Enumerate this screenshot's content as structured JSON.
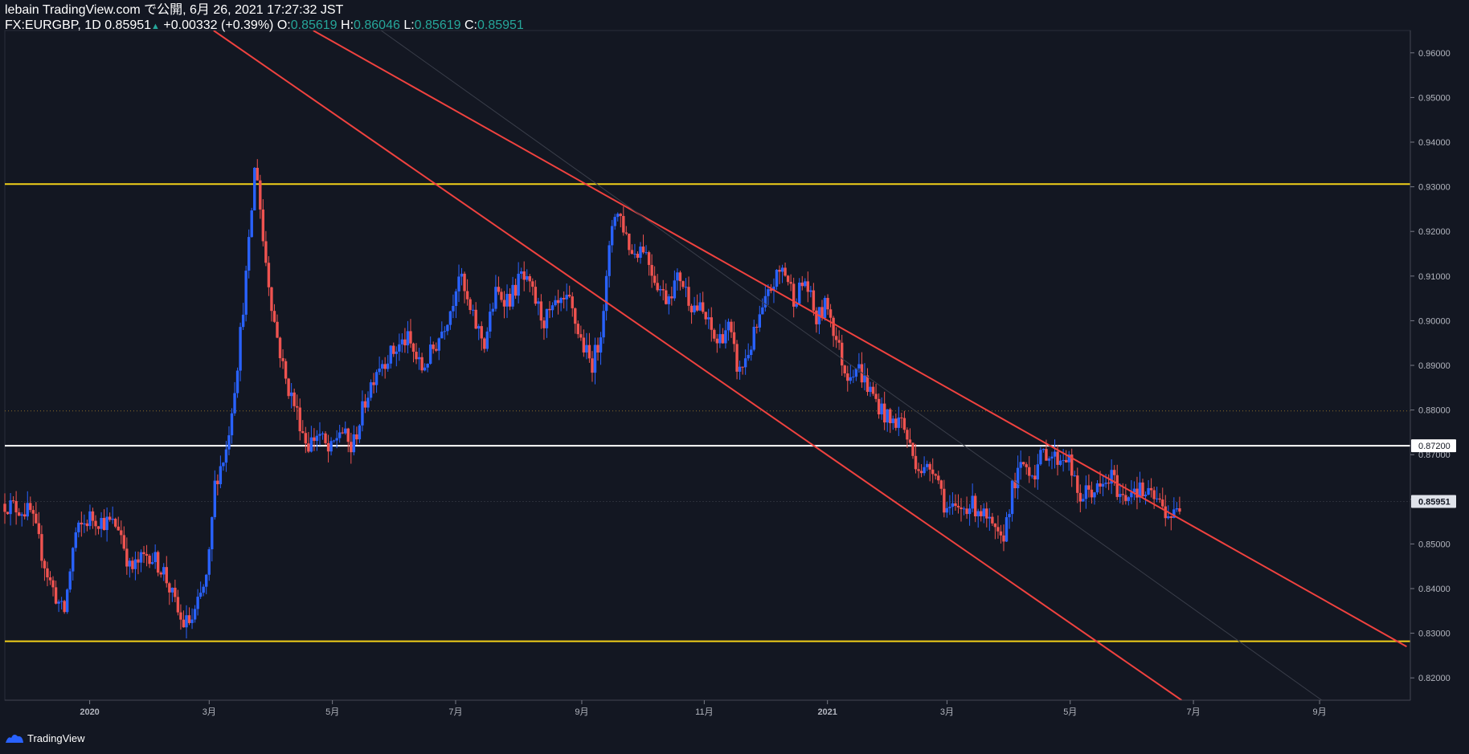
{
  "header": {
    "line1": "lebain TradingView.com で公開, 6月 26, 2021 17:27:32 JST",
    "symbol": "FX:EURGBP, 1D",
    "last": "0.85951",
    "up_arrow": "▲",
    "change": "+0.00332 (+0.39%)",
    "o_label": "O:",
    "o": "0.85619",
    "h_label": "H:",
    "h": "0.86046",
    "l_label": "L:",
    "l": "0.85619",
    "c_label": "C:",
    "c": "0.85951"
  },
  "footer": {
    "brand": "TradingView"
  },
  "colors": {
    "bg": "#131722",
    "up": "#2962ff",
    "down": "#ef5350",
    "trend": "#f0423f",
    "support": "#f2d019",
    "level": "#ffffff",
    "grid": "#1e2230"
  },
  "chart_data": {
    "type": "candlestick",
    "symbol": "FX:EURGBP",
    "interval": "1D",
    "ylim": [
      0.815,
      0.965
    ],
    "y_ticks": [
      "0.82000",
      "0.83000",
      "0.84000",
      "0.85000",
      "0.86000",
      "0.87000",
      "0.88000",
      "0.89000",
      "0.90000",
      "0.91000",
      "0.92000",
      "0.93000",
      "0.94000",
      "0.95000",
      "0.96000"
    ],
    "x_ticks": [
      {
        "label": "2020",
        "t": 2020.0
      },
      {
        "label": "3月",
        "t": 2020.162
      },
      {
        "label": "5月",
        "t": 2020.329
      },
      {
        "label": "7月",
        "t": 2020.496
      },
      {
        "label": "9月",
        "t": 2020.667
      },
      {
        "label": "11月",
        "t": 2020.833
      },
      {
        "label": "2021",
        "t": 2021.0
      },
      {
        "label": "3月",
        "t": 2021.162
      },
      {
        "label": "5月",
        "t": 2021.329
      },
      {
        "label": "7月",
        "t": 2021.496
      },
      {
        "label": "9月",
        "t": 2021.667
      }
    ],
    "xlim": [
      2019.885,
      2021.79
    ],
    "horizontal_levels": [
      {
        "name": "resistance",
        "value": 0.9306,
        "color": "#f2d019"
      },
      {
        "name": "support",
        "value": 0.8282,
        "color": "#f2d019"
      },
      {
        "name": "key-level",
        "value": 0.872,
        "color": "#ffffff",
        "label": "0.87200"
      }
    ],
    "dotted_level": 0.8798,
    "last_price": {
      "value": 0.85951,
      "label": "0.85951"
    },
    "trend_lines": [
      {
        "name": "channel-upper",
        "p1": {
          "t": 2020.303,
          "v": 0.965
        },
        "p2": {
          "t": 2021.785,
          "v": 0.827
        }
      },
      {
        "name": "channel-lower",
        "p1": {
          "t": 2020.168,
          "v": 0.965
        },
        "p2": {
          "t": 2021.48,
          "v": 0.815
        }
      },
      {
        "name": "channel-mid",
        "p1": {
          "t": 2020.395,
          "v": 0.965
        },
        "p2": {
          "t": 2021.67,
          "v": 0.815
        }
      }
    ],
    "price_path": [
      {
        "t": 2019.885,
        "v": 0.859
      },
      {
        "t": 2019.92,
        "v": 0.857
      },
      {
        "t": 2019.945,
        "v": 0.842
      },
      {
        "t": 2019.965,
        "v": 0.834
      },
      {
        "t": 2019.98,
        "v": 0.852
      },
      {
        "t": 2020.0,
        "v": 0.856
      },
      {
        "t": 2020.04,
        "v": 0.854
      },
      {
        "t": 2020.055,
        "v": 0.844
      },
      {
        "t": 2020.08,
        "v": 0.848
      },
      {
        "t": 2020.1,
        "v": 0.844
      },
      {
        "t": 2020.125,
        "v": 0.832
      },
      {
        "t": 2020.14,
        "v": 0.833
      },
      {
        "t": 2020.16,
        "v": 0.843
      },
      {
        "t": 2020.17,
        "v": 0.864
      },
      {
        "t": 2020.185,
        "v": 0.871
      },
      {
        "t": 2020.2,
        "v": 0.89
      },
      {
        "t": 2020.215,
        "v": 0.915
      },
      {
        "t": 2020.225,
        "v": 0.937
      },
      {
        "t": 2020.235,
        "v": 0.918
      },
      {
        "t": 2020.25,
        "v": 0.9
      },
      {
        "t": 2020.265,
        "v": 0.887
      },
      {
        "t": 2020.28,
        "v": 0.88
      },
      {
        "t": 2020.295,
        "v": 0.872
      },
      {
        "t": 2020.31,
        "v": 0.875
      },
      {
        "t": 2020.325,
        "v": 0.87
      },
      {
        "t": 2020.34,
        "v": 0.876
      },
      {
        "t": 2020.355,
        "v": 0.871
      },
      {
        "t": 2020.375,
        "v": 0.883
      },
      {
        "t": 2020.39,
        "v": 0.89
      },
      {
        "t": 2020.405,
        "v": 0.892
      },
      {
        "t": 2020.43,
        "v": 0.896
      },
      {
        "t": 2020.45,
        "v": 0.889
      },
      {
        "t": 2020.47,
        "v": 0.895
      },
      {
        "t": 2020.49,
        "v": 0.903
      },
      {
        "t": 2020.5,
        "v": 0.911
      },
      {
        "t": 2020.515,
        "v": 0.902
      },
      {
        "t": 2020.535,
        "v": 0.895
      },
      {
        "t": 2020.55,
        "v": 0.906
      },
      {
        "t": 2020.57,
        "v": 0.905
      },
      {
        "t": 2020.585,
        "v": 0.91
      },
      {
        "t": 2020.6,
        "v": 0.906
      },
      {
        "t": 2020.615,
        "v": 0.9
      },
      {
        "t": 2020.635,
        "v": 0.903
      },
      {
        "t": 2020.65,
        "v": 0.904
      },
      {
        "t": 2020.665,
        "v": 0.896
      },
      {
        "t": 2020.68,
        "v": 0.89
      },
      {
        "t": 2020.69,
        "v": 0.895
      },
      {
        "t": 2020.7,
        "v": 0.908
      },
      {
        "t": 2020.71,
        "v": 0.925
      },
      {
        "t": 2020.72,
        "v": 0.923
      },
      {
        "t": 2020.735,
        "v": 0.915
      },
      {
        "t": 2020.75,
        "v": 0.917
      },
      {
        "t": 2020.765,
        "v": 0.91
      },
      {
        "t": 2020.78,
        "v": 0.905
      },
      {
        "t": 2020.8,
        "v": 0.91
      },
      {
        "t": 2020.815,
        "v": 0.904
      },
      {
        "t": 2020.83,
        "v": 0.902
      },
      {
        "t": 2020.85,
        "v": 0.895
      },
      {
        "t": 2020.865,
        "v": 0.899
      },
      {
        "t": 2020.88,
        "v": 0.888
      },
      {
        "t": 2020.895,
        "v": 0.894
      },
      {
        "t": 2020.91,
        "v": 0.901
      },
      {
        "t": 2020.925,
        "v": 0.908
      },
      {
        "t": 2020.94,
        "v": 0.912
      },
      {
        "t": 2020.955,
        "v": 0.905
      },
      {
        "t": 2020.97,
        "v": 0.909
      },
      {
        "t": 2020.985,
        "v": 0.9
      },
      {
        "t": 2021.0,
        "v": 0.904
      },
      {
        "t": 2021.01,
        "v": 0.897
      },
      {
        "t": 2021.025,
        "v": 0.888
      },
      {
        "t": 2021.04,
        "v": 0.89
      },
      {
        "t": 2021.055,
        "v": 0.885
      },
      {
        "t": 2021.07,
        "v": 0.881
      },
      {
        "t": 2021.085,
        "v": 0.877
      },
      {
        "t": 2021.1,
        "v": 0.878
      },
      {
        "t": 2021.115,
        "v": 0.87
      },
      {
        "t": 2021.13,
        "v": 0.866
      },
      {
        "t": 2021.145,
        "v": 0.868
      },
      {
        "t": 2021.16,
        "v": 0.858
      },
      {
        "t": 2021.175,
        "v": 0.857
      },
      {
        "t": 2021.19,
        "v": 0.859
      },
      {
        "t": 2021.205,
        "v": 0.858
      },
      {
        "t": 2021.22,
        "v": 0.854
      },
      {
        "t": 2021.235,
        "v": 0.85
      },
      {
        "t": 2021.24,
        "v": 0.853
      },
      {
        "t": 2021.25,
        "v": 0.862
      },
      {
        "t": 2021.265,
        "v": 0.868
      },
      {
        "t": 2021.28,
        "v": 0.866
      },
      {
        "t": 2021.295,
        "v": 0.871
      },
      {
        "t": 2021.31,
        "v": 0.869
      },
      {
        "t": 2021.325,
        "v": 0.87
      },
      {
        "t": 2021.34,
        "v": 0.86
      },
      {
        "t": 2021.355,
        "v": 0.862
      },
      {
        "t": 2021.37,
        "v": 0.862
      },
      {
        "t": 2021.385,
        "v": 0.865
      },
      {
        "t": 2021.4,
        "v": 0.86
      },
      {
        "t": 2021.415,
        "v": 0.863
      },
      {
        "t": 2021.43,
        "v": 0.861
      },
      {
        "t": 2021.445,
        "v": 0.86
      },
      {
        "t": 2021.46,
        "v": 0.857
      },
      {
        "t": 2021.47,
        "v": 0.8562
      },
      {
        "t": 2021.481,
        "v": 0.8595
      }
    ]
  }
}
